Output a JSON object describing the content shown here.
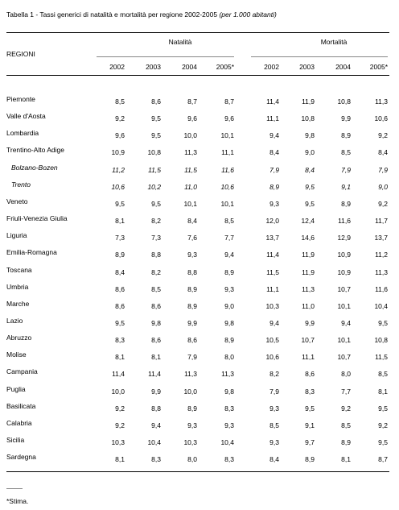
{
  "title": {
    "main": "Tabella 1 - Tassi generici di natalità e mortalità  per regione 2002-2005",
    "note": "(per 1.000 abitanti)"
  },
  "table": {
    "row_header": "REGIONI",
    "groups": [
      "Natalità",
      "Mortalità"
    ],
    "years": [
      "2002",
      "2003",
      "2004",
      "2005*",
      "2002",
      "2003",
      "2004",
      "2005*"
    ],
    "rows": [
      [
        "Piemonte",
        "8,5",
        "8,6",
        "8,7",
        "8,7",
        "11,4",
        "11,9",
        "10,8",
        "11,3"
      ],
      [
        "Valle d'Aosta",
        "9,2",
        "9,5",
        "9,6",
        "9,6",
        "11,1",
        "10,8",
        "9,9",
        "10,6"
      ],
      [
        "Lombardia",
        "9,6",
        "9,5",
        "10,0",
        "10,1",
        "9,4",
        "9,8",
        "8,9",
        "9,2"
      ],
      [
        "Trentino-Alto Adige",
        "10,9",
        "10,8",
        "11,3",
        "11,1",
        "8,4",
        "9,0",
        "8,5",
        "8,4"
      ],
      [
        "Bolzano-Bozen",
        "11,2",
        "11,5",
        "11,5",
        "11,6",
        "7,9",
        "8,4",
        "7,9",
        "7,9"
      ],
      [
        "Trento",
        "10,6",
        "10,2",
        "11,0",
        "10,6",
        "8,9",
        "9,5",
        "9,1",
        "9,0"
      ],
      [
        "Veneto",
        "9,5",
        "9,5",
        "10,1",
        "10,1",
        "9,3",
        "9,5",
        "8,9",
        "9,2"
      ],
      [
        "Friuli-Venezia Giulia",
        "8,1",
        "8,2",
        "8,4",
        "8,5",
        "12,0",
        "12,4",
        "11,6",
        "11,7"
      ],
      [
        "Liguria",
        "7,3",
        "7,3",
        "7,6",
        "7,7",
        "13,7",
        "14,6",
        "12,9",
        "13,7"
      ],
      [
        "Emilia-Romagna",
        "8,9",
        "8,8",
        "9,3",
        "9,4",
        "11,4",
        "11,9",
        "10,9",
        "11,2"
      ],
      [
        "Toscana",
        "8,4",
        "8,2",
        "8,8",
        "8,9",
        "11,5",
        "11,9",
        "10,9",
        "11,3"
      ],
      [
        "Umbria",
        "8,6",
        "8,5",
        "8,9",
        "9,3",
        "11,1",
        "11,3",
        "10,7",
        "11,6"
      ],
      [
        "Marche",
        "8,6",
        "8,6",
        "8,9",
        "9,0",
        "10,3",
        "11,0",
        "10,1",
        "10,4"
      ],
      [
        "Lazio",
        "9,5",
        "9,8",
        "9,9",
        "9,8",
        "9,4",
        "9,9",
        "9,4",
        "9,5"
      ],
      [
        "Abruzzo",
        "8,3",
        "8,6",
        "8,6",
        "8,9",
        "10,5",
        "10,7",
        "10,1",
        "10,8"
      ],
      [
        "Molise",
        "8,1",
        "8,1",
        "7,9",
        "8,0",
        "10,6",
        "11,1",
        "10,7",
        "11,5"
      ],
      [
        "Campania",
        "11,4",
        "11,4",
        "11,3",
        "11,3",
        "8,2",
        "8,6",
        "8,0",
        "8,5"
      ],
      [
        "Puglia",
        "10,0",
        "9,9",
        "10,0",
        "9,8",
        "7,9",
        "8,3",
        "7,7",
        "8,1"
      ],
      [
        "Basilicata",
        "9,2",
        "8,8",
        "8,9",
        "8,3",
        "9,3",
        "9,5",
        "9,2",
        "9,5"
      ],
      [
        "Calabria",
        "9,2",
        "9,4",
        "9,3",
        "9,3",
        "8,5",
        "9,1",
        "8,5",
        "9,2"
      ],
      [
        "Sicilia",
        "10,3",
        "10,4",
        "10,3",
        "10,4",
        "9,3",
        "9,7",
        "8,9",
        "9,5"
      ],
      [
        "Sardegna",
        "8,1",
        "8,3",
        "8,0",
        "8,3",
        "8,4",
        "8,9",
        "8,1",
        "8,7"
      ]
    ]
  },
  "footnote": "*Stima."
}
